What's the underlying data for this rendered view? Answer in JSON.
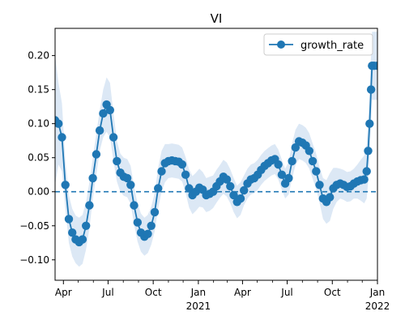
{
  "chart_data": {
    "type": "line",
    "title": "VI",
    "xlabel": "",
    "ylabel": "",
    "x_range": [
      "2020-03-15",
      "2022-01-01"
    ],
    "ylim": [
      -0.13,
      0.24
    ],
    "grid": false,
    "legend": {
      "position": "top-right",
      "entries": [
        "growth_rate"
      ]
    },
    "colors": {
      "series": "#1f77b4",
      "band": "#dce8f5",
      "baseline": "#1f77b4"
    },
    "x_ticks": [
      {
        "date": "2020-04-01",
        "label": "Apr",
        "sublabel": ""
      },
      {
        "date": "2020-07-01",
        "label": "Jul",
        "sublabel": ""
      },
      {
        "date": "2020-10-01",
        "label": "Oct",
        "sublabel": ""
      },
      {
        "date": "2021-01-01",
        "label": "Jan",
        "sublabel": "2021"
      },
      {
        "date": "2021-04-01",
        "label": "Apr",
        "sublabel": ""
      },
      {
        "date": "2021-07-01",
        "label": "Jul",
        "sublabel": ""
      },
      {
        "date": "2021-10-01",
        "label": "Oct",
        "sublabel": ""
      },
      {
        "date": "2022-01-01",
        "label": "Jan",
        "sublabel": "2022"
      }
    ],
    "y_ticks": [
      -0.1,
      -0.05,
      0.0,
      0.05,
      0.1,
      0.15,
      0.2
    ],
    "y_tick_labels": [
      "−0.10",
      "−0.05",
      "0.00",
      "0.05",
      "0.10",
      "0.15",
      "0.20"
    ],
    "baseline": {
      "y": 0,
      "style": "dashed"
    },
    "series": [
      {
        "name": "growth_rate",
        "marker": "circle",
        "points": [
          [
            "2020-03-15",
            0.105
          ],
          [
            "2020-03-22",
            0.1
          ],
          [
            "2020-03-29",
            0.08
          ],
          [
            "2020-04-05",
            0.01
          ],
          [
            "2020-04-12",
            -0.04
          ],
          [
            "2020-04-19",
            -0.06
          ],
          [
            "2020-04-26",
            -0.07
          ],
          [
            "2020-05-03",
            -0.074
          ],
          [
            "2020-05-10",
            -0.07
          ],
          [
            "2020-05-17",
            -0.05
          ],
          [
            "2020-05-24",
            -0.02
          ],
          [
            "2020-05-31",
            0.02
          ],
          [
            "2020-06-07",
            0.055
          ],
          [
            "2020-06-14",
            0.09
          ],
          [
            "2020-06-21",
            0.115
          ],
          [
            "2020-06-28",
            0.128
          ],
          [
            "2020-07-05",
            0.12
          ],
          [
            "2020-07-12",
            0.08
          ],
          [
            "2020-07-19",
            0.045
          ],
          [
            "2020-07-26",
            0.028
          ],
          [
            "2020-08-02",
            0.022
          ],
          [
            "2020-08-09",
            0.02
          ],
          [
            "2020-08-16",
            0.01
          ],
          [
            "2020-08-23",
            -0.02
          ],
          [
            "2020-08-30",
            -0.045
          ],
          [
            "2020-09-06",
            -0.06
          ],
          [
            "2020-09-13",
            -0.066
          ],
          [
            "2020-09-20",
            -0.062
          ],
          [
            "2020-09-27",
            -0.05
          ],
          [
            "2020-10-04",
            -0.03
          ],
          [
            "2020-10-11",
            0.005
          ],
          [
            "2020-10-18",
            0.03
          ],
          [
            "2020-10-25",
            0.042
          ],
          [
            "2020-11-01",
            0.045
          ],
          [
            "2020-11-08",
            0.046
          ],
          [
            "2020-11-15",
            0.045
          ],
          [
            "2020-11-22",
            0.044
          ],
          [
            "2020-11-29",
            0.04
          ],
          [
            "2020-12-06",
            0.025
          ],
          [
            "2020-12-13",
            0.005
          ],
          [
            "2020-12-20",
            -0.005
          ],
          [
            "2020-12-27",
            0.0
          ],
          [
            "2021-01-03",
            0.006
          ],
          [
            "2021-01-10",
            0.003
          ],
          [
            "2021-01-17",
            -0.005
          ],
          [
            "2021-01-24",
            -0.003
          ],
          [
            "2021-01-31",
            0.0
          ],
          [
            "2021-02-07",
            0.008
          ],
          [
            "2021-02-14",
            0.015
          ],
          [
            "2021-02-21",
            0.022
          ],
          [
            "2021-02-28",
            0.018
          ],
          [
            "2021-03-07",
            0.008
          ],
          [
            "2021-03-14",
            -0.005
          ],
          [
            "2021-03-21",
            -0.015
          ],
          [
            "2021-03-28",
            -0.01
          ],
          [
            "2021-04-04",
            0.002
          ],
          [
            "2021-04-11",
            0.012
          ],
          [
            "2021-04-18",
            0.018
          ],
          [
            "2021-04-25",
            0.02
          ],
          [
            "2021-05-02",
            0.025
          ],
          [
            "2021-05-09",
            0.032
          ],
          [
            "2021-05-16",
            0.038
          ],
          [
            "2021-05-23",
            0.042
          ],
          [
            "2021-05-30",
            0.046
          ],
          [
            "2021-06-06",
            0.048
          ],
          [
            "2021-06-13",
            0.04
          ],
          [
            "2021-06-20",
            0.025
          ],
          [
            "2021-06-27",
            0.012
          ],
          [
            "2021-07-04",
            0.02
          ],
          [
            "2021-07-11",
            0.045
          ],
          [
            "2021-07-18",
            0.065
          ],
          [
            "2021-07-25",
            0.074
          ],
          [
            "2021-08-01",
            0.072
          ],
          [
            "2021-08-08",
            0.068
          ],
          [
            "2021-08-15",
            0.06
          ],
          [
            "2021-08-22",
            0.045
          ],
          [
            "2021-08-29",
            0.03
          ],
          [
            "2021-09-05",
            0.01
          ],
          [
            "2021-09-12",
            -0.01
          ],
          [
            "2021-09-19",
            -0.015
          ],
          [
            "2021-09-26",
            -0.008
          ],
          [
            "2021-10-03",
            0.005
          ],
          [
            "2021-10-10",
            0.01
          ],
          [
            "2021-10-17",
            0.012
          ],
          [
            "2021-10-24",
            0.01
          ],
          [
            "2021-10-31",
            0.007
          ],
          [
            "2021-11-07",
            0.008
          ],
          [
            "2021-11-14",
            0.012
          ],
          [
            "2021-11-21",
            0.015
          ],
          [
            "2021-11-28",
            0.017
          ],
          [
            "2021-12-05",
            0.018
          ],
          [
            "2021-12-10",
            0.03
          ],
          [
            "2021-12-13",
            0.06
          ],
          [
            "2021-12-16",
            0.1
          ],
          [
            "2021-12-19",
            0.15
          ],
          [
            "2021-12-21",
            0.185
          ],
          [
            "2021-12-25",
            0.185
          ],
          [
            "2022-01-01",
            0.185
          ]
        ],
        "band_half_width": [
          0.095,
          0.06,
          0.05,
          0.035,
          0.035,
          0.035,
          0.035,
          0.036,
          0.036,
          0.035,
          0.034,
          0.03,
          0.03,
          0.03,
          0.035,
          0.04,
          0.04,
          0.035,
          0.03,
          0.028,
          0.028,
          0.028,
          0.028,
          0.028,
          0.028,
          0.028,
          0.028,
          0.028,
          0.028,
          0.028,
          0.03,
          0.03,
          0.028,
          0.025,
          0.025,
          0.025,
          0.025,
          0.025,
          0.026,
          0.028,
          0.028,
          0.028,
          0.028,
          0.026,
          0.025,
          0.025,
          0.024,
          0.024,
          0.024,
          0.025,
          0.025,
          0.025,
          0.025,
          0.024,
          0.024,
          0.022,
          0.022,
          0.022,
          0.022,
          0.022,
          0.022,
          0.022,
          0.022,
          0.022,
          0.022,
          0.022,
          0.022,
          0.022,
          0.024,
          0.026,
          0.026,
          0.026,
          0.026,
          0.026,
          0.026,
          0.026,
          0.026,
          0.026,
          0.03,
          0.032,
          0.035,
          0.03,
          0.025,
          0.022,
          0.022,
          0.022,
          0.022,
          0.022,
          0.025,
          0.03,
          0.035,
          0.04,
          0.045,
          0.048,
          0.05,
          0.05,
          0.05,
          0.05
        ]
      }
    ]
  }
}
